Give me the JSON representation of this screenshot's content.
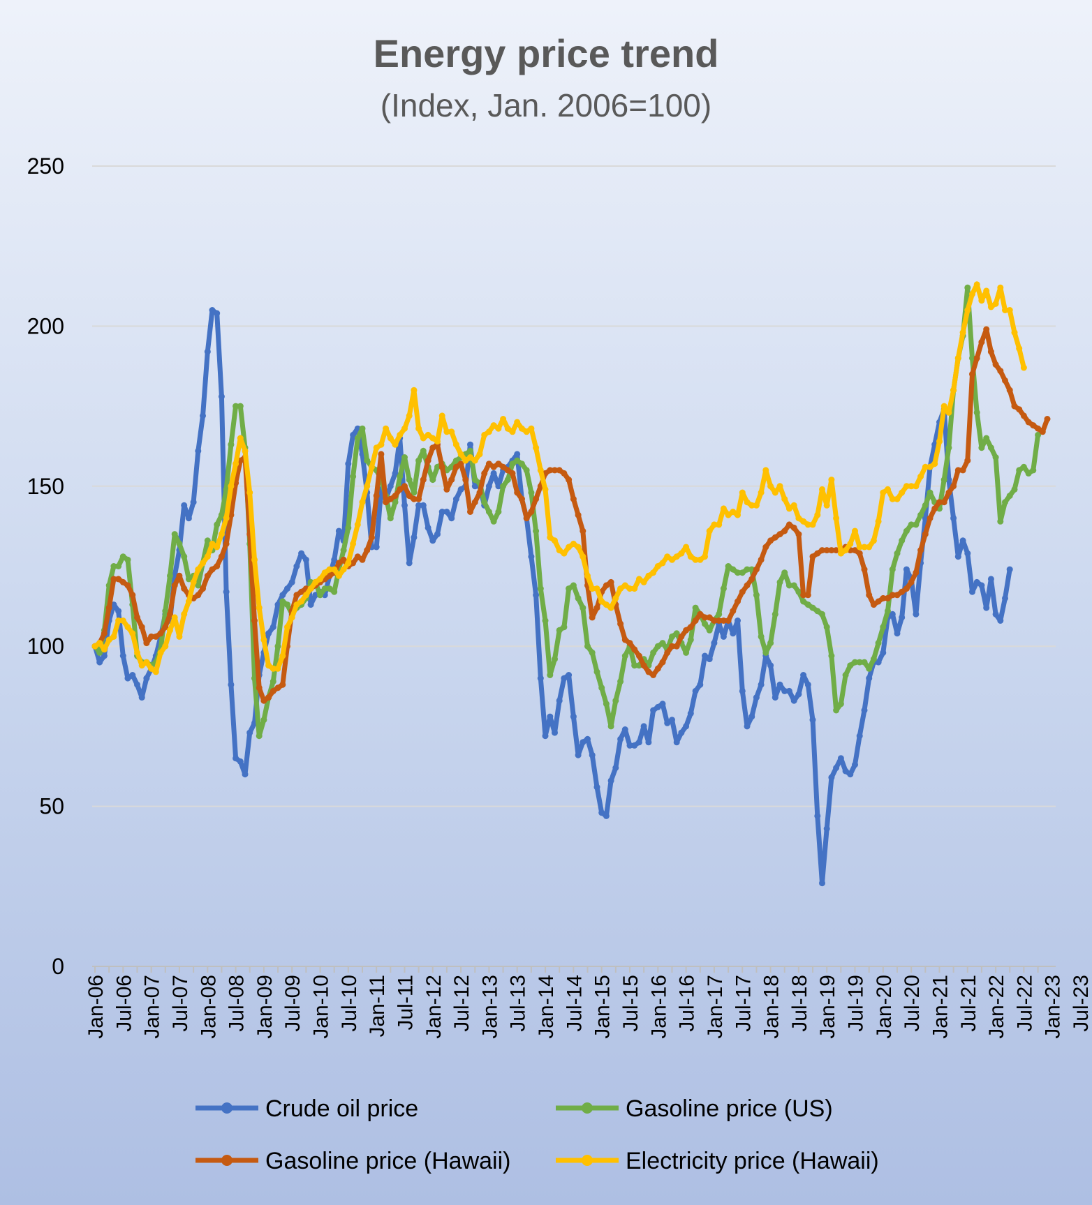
{
  "chart_data": {
    "type": "line",
    "title": "Energy price trend",
    "subtitle": "(Index, Jan. 2006=100)",
    "xlabel": "",
    "ylabel": "",
    "ylim": [
      0,
      250
    ],
    "yticks": [
      0,
      50,
      100,
      150,
      200,
      250
    ],
    "grid": true,
    "legend_position": "bottom",
    "x_tick_labels": [
      "Jan-06",
      "Jul-06",
      "Jan-07",
      "Jul-07",
      "Jan-08",
      "Jul-08",
      "Jan-09",
      "Jul-09",
      "Jan-10",
      "Jul-10",
      "Jan-11",
      "Jul-11",
      "Jan-12",
      "Jul-12",
      "Jan-13",
      "Jul-13",
      "Jan-14",
      "Jul-14",
      "Jan-15",
      "Jul-15",
      "Jan-16",
      "Jul-16",
      "Jan-17",
      "Jul-17",
      "Jan-18",
      "Jul-18",
      "Jan-19",
      "Jul-19",
      "Jan-20",
      "Jul-20",
      "Jan-21",
      "Jul-21",
      "Jan-22",
      "Jul-22",
      "Jan-23",
      "Jul-23"
    ],
    "x_start": "Jan-06",
    "x_frequency": "monthly",
    "series": [
      {
        "name": "Crude oil price",
        "color": "#4472C4",
        "values": [
          100,
          95,
          97,
          108,
          113,
          111,
          97,
          90,
          91,
          88,
          84,
          90,
          93,
          97,
          103,
          110,
          108,
          122,
          130,
          144,
          140,
          145,
          161,
          172,
          192,
          205,
          204,
          178,
          117,
          88,
          65,
          64,
          60,
          73,
          76,
          91,
          98,
          104,
          106,
          113,
          116,
          118,
          120,
          125,
          129,
          127,
          113,
          116,
          117,
          116,
          122,
          127,
          136,
          133,
          157,
          166,
          168,
          160,
          148,
          131,
          131,
          149,
          146,
          150,
          154,
          165,
          144,
          126,
          134,
          144,
          144,
          137,
          133,
          135,
          142,
          142,
          140,
          146,
          149,
          150,
          163,
          150,
          150,
          144,
          150,
          154,
          150,
          155,
          156,
          158,
          160,
          146,
          140,
          128,
          116,
          90,
          72,
          78,
          73,
          83,
          90,
          91,
          78,
          66,
          70,
          71,
          66,
          56,
          48,
          47,
          58,
          62,
          71,
          74,
          69,
          69,
          70,
          75,
          70,
          80,
          81,
          82,
          76,
          77,
          70,
          73,
          75,
          79,
          86,
          88,
          97,
          96,
          101,
          107,
          103,
          108,
          104,
          108,
          86,
          75,
          78,
          84,
          88,
          97,
          94,
          84,
          88,
          86,
          86,
          83,
          85,
          91,
          88,
          77,
          47,
          26,
          43,
          59,
          62,
          65,
          61,
          60,
          63,
          72,
          80,
          90,
          95,
          95,
          98,
          109,
          110,
          104,
          109,
          124,
          121,
          110,
          126,
          140,
          156,
          163,
          170,
          174,
          152,
          140,
          128,
          133,
          129,
          117,
          120,
          119,
          112,
          121,
          110,
          108,
          115,
          124
        ]
      },
      {
        "name": "Gasoline price (US)",
        "color": "#70AD47",
        "values": [
          100,
          98,
          105,
          119,
          125,
          125,
          128,
          127,
          113,
          97,
          95,
          95,
          94,
          95,
          99,
          111,
          122,
          135,
          132,
          128,
          121,
          122,
          119,
          126,
          133,
          130,
          138,
          141,
          149,
          163,
          175,
          175,
          162,
          132,
          90,
          72,
          77,
          84,
          89,
          100,
          114,
          113,
          110,
          112,
          113,
          115,
          120,
          120,
          116,
          118,
          118,
          117,
          124,
          130,
          137,
          153,
          165,
          168,
          158,
          156,
          155,
          152,
          147,
          140,
          145,
          153,
          159,
          152,
          148,
          158,
          161,
          156,
          152,
          156,
          157,
          155,
          156,
          158,
          159,
          160,
          161,
          152,
          151,
          145,
          142,
          139,
          142,
          150,
          152,
          157,
          158,
          157,
          155,
          148,
          136,
          118,
          108,
          91,
          96,
          105,
          106,
          118,
          119,
          115,
          112,
          100,
          98,
          92,
          87,
          82,
          75,
          83,
          89,
          97,
          100,
          94,
          94,
          96,
          94,
          98,
          100,
          101,
          99,
          103,
          104,
          101,
          98,
          102,
          112,
          110,
          107,
          105,
          108,
          110,
          118,
          125,
          124,
          123,
          123,
          124,
          124,
          116,
          103,
          98,
          101,
          110,
          120,
          123,
          119,
          119,
          117,
          114,
          113,
          112,
          111,
          110,
          106,
          97,
          80,
          82,
          91,
          94,
          95,
          95,
          95,
          93,
          96,
          101,
          106,
          111,
          124,
          129,
          133,
          136,
          138,
          138,
          141,
          144,
          148,
          145,
          143,
          152,
          162,
          180,
          190,
          197,
          212,
          190,
          173,
          162,
          165,
          162,
          159,
          139,
          145,
          147,
          149,
          155,
          156,
          154,
          155,
          166
        ]
      },
      {
        "name": "Gasoline price (Hawaii)",
        "color": "#C55A11",
        "values": [
          100,
          101,
          104,
          112,
          121,
          121,
          120,
          119,
          116,
          109,
          106,
          101,
          103,
          103,
          104,
          106,
          110,
          119,
          122,
          118,
          116,
          115,
          116,
          118,
          122,
          124,
          125,
          128,
          132,
          141,
          151,
          158,
          159,
          135,
          108,
          87,
          83,
          84,
          86,
          87,
          88,
          100,
          111,
          116,
          117,
          118,
          118,
          119,
          120,
          121,
          122,
          123,
          126,
          127,
          125,
          126,
          128,
          127,
          130,
          134,
          147,
          160,
          145,
          146,
          147,
          149,
          150,
          147,
          146,
          146,
          152,
          158,
          162,
          163,
          156,
          149,
          152,
          156,
          157,
          152,
          142,
          145,
          148,
          154,
          157,
          156,
          157,
          156,
          155,
          154,
          148,
          146,
          140,
          142,
          146,
          150,
          154,
          155,
          155,
          155,
          154,
          152,
          146,
          141,
          136,
          119,
          109,
          112,
          117,
          119,
          120,
          113,
          107,
          102,
          101,
          99,
          97,
          94,
          92,
          91,
          93,
          95,
          98,
          100,
          100,
          103,
          105,
          106,
          108,
          110,
          109,
          109,
          108,
          108,
          108,
          108,
          111,
          114,
          117,
          119,
          121,
          124,
          127,
          131,
          133,
          134,
          135,
          136,
          138,
          137,
          135,
          116,
          116,
          128,
          129,
          130,
          130,
          130,
          130,
          130,
          131,
          130,
          130,
          129,
          124,
          116,
          113,
          114,
          115,
          115,
          116,
          116,
          117,
          118,
          120,
          123,
          130,
          135,
          140,
          143,
          145,
          145,
          148,
          150,
          155,
          155,
          158,
          185,
          190,
          195,
          199,
          192,
          188,
          186,
          183,
          180,
          175,
          174,
          172,
          170,
          169,
          168,
          167,
          171
        ]
      },
      {
        "name": "Electricity price (Hawaii)",
        "color": "#FFC000",
        "values": [
          100,
          101,
          99,
          102,
          103,
          108,
          108,
          106,
          104,
          98,
          94,
          95,
          93,
          92,
          98,
          100,
          105,
          109,
          103,
          110,
          114,
          120,
          124,
          126,
          128,
          132,
          131,
          135,
          140,
          150,
          157,
          165,
          161,
          148,
          127,
          112,
          102,
          94,
          93,
          93,
          97,
          106,
          109,
          113,
          114,
          116,
          118,
          120,
          121,
          123,
          124,
          124,
          122,
          124,
          126,
          132,
          138,
          145,
          150,
          156,
          162,
          163,
          168,
          165,
          163,
          166,
          168,
          172,
          180,
          168,
          165,
          166,
          165,
          164,
          172,
          167,
          167,
          163,
          160,
          158,
          159,
          158,
          160,
          166,
          167,
          169,
          168,
          171,
          168,
          167,
          170,
          168,
          167,
          168,
          162,
          155,
          149,
          134,
          133,
          130,
          129,
          131,
          132,
          131,
          128,
          122,
          118,
          118,
          114,
          113,
          112,
          115,
          118,
          119,
          118,
          118,
          121,
          120,
          122,
          123,
          125,
          126,
          128,
          127,
          128,
          129,
          131,
          128,
          127,
          127,
          128,
          136,
          138,
          138,
          143,
          141,
          142,
          141,
          148,
          145,
          144,
          144,
          148,
          155,
          150,
          148,
          150,
          146,
          143,
          144,
          140,
          139,
          138,
          138,
          141,
          149,
          144,
          152,
          140,
          129,
          130,
          132,
          136,
          131,
          131,
          131,
          133,
          139,
          148,
          149,
          146,
          146,
          148,
          150,
          150,
          150,
          153,
          156,
          156,
          157,
          164,
          175,
          173,
          180,
          190,
          198,
          205,
          210,
          213,
          208,
          211,
          206,
          207,
          212,
          205,
          205,
          198,
          193,
          187
        ]
      }
    ]
  }
}
